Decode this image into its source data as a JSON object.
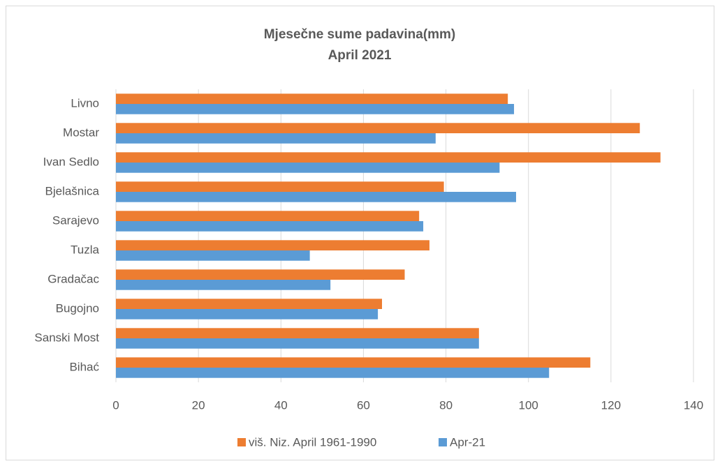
{
  "chart_data": {
    "type": "barh",
    "title": "Mjesečne sume padavina(mm)",
    "subtitle": "April 2021",
    "categories": [
      "Livno",
      "Mostar",
      "Ivan Sedlo",
      "Bjelašnica",
      "Sarajevo",
      "Tuzla",
      "Gradačac",
      "Bugojno",
      "Sanski Most",
      "Bihać"
    ],
    "series": [
      {
        "name": "viš. Niz. April 1961-1990",
        "color": "#ed7d31",
        "values": [
          95,
          127,
          132,
          79.5,
          73.5,
          76,
          70,
          64.5,
          88,
          115
        ]
      },
      {
        "name": "Apr-21",
        "color": "#5b9bd5",
        "values": [
          96.5,
          77.5,
          93,
          97,
          74.5,
          47,
          52,
          63.5,
          88,
          105
        ]
      }
    ],
    "xlim": [
      0,
      140
    ],
    "xticks": [
      0,
      20,
      40,
      60,
      80,
      100,
      120,
      140
    ],
    "grid": true,
    "legend": "bottom"
  }
}
